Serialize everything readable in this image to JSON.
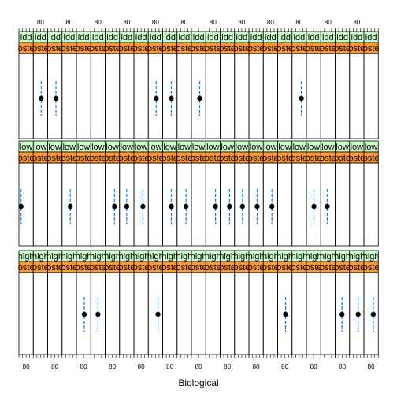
{
  "chart_data": {
    "type": "scatter",
    "xlabel": "Biological",
    "ylabel": "",
    "grid": false,
    "tick_label": "80",
    "strip_colors": {
      "group": "#ccffcc",
      "condition": "#ff9933"
    },
    "point_color": "#000000",
    "errorbar_color": "#0080ff",
    "rows": [
      {
        "name": "middle",
        "strip_text": "idd",
        "condition_text": "oste",
        "points": [
          {
            "panel": 1,
            "x": 82
          },
          {
            "panel": 2,
            "x": 83
          },
          {
            "panel": 9,
            "x": 82
          },
          {
            "panel": 10,
            "x": 84
          },
          {
            "panel": 12,
            "x": 83
          },
          {
            "panel": 19,
            "x": 86
          }
        ]
      },
      {
        "name": "low",
        "strip_text": "low",
        "condition_text": "oste",
        "points": [
          {
            "panel": 0,
            "x": 66
          },
          {
            "panel": 3,
            "x": 83
          },
          {
            "panel": 6,
            "x": 86
          },
          {
            "panel": 7,
            "x": 80
          },
          {
            "panel": 8,
            "x": 85
          },
          {
            "panel": 10,
            "x": 84
          },
          {
            "panel": 11,
            "x": 85
          },
          {
            "panel": 13,
            "x": 87
          },
          {
            "panel": 14,
            "x": 86
          },
          {
            "panel": 15,
            "x": 82
          },
          {
            "panel": 16,
            "x": 83
          },
          {
            "panel": 17,
            "x": 84
          },
          {
            "panel": 20,
            "x": 81
          },
          {
            "panel": 21,
            "x": 78
          }
        ]
      },
      {
        "name": "high",
        "strip_text": "high",
        "condition_text": "oste",
        "points": [
          {
            "panel": 4,
            "x": 82
          },
          {
            "panel": 5,
            "x": 80
          },
          {
            "panel": 9,
            "x": 87
          },
          {
            "panel": 18,
            "x": 82
          },
          {
            "panel": 22,
            "x": 79
          },
          {
            "panel": 23,
            "x": 84
          },
          {
            "panel": 24,
            "x": 86
          }
        ]
      }
    ]
  }
}
